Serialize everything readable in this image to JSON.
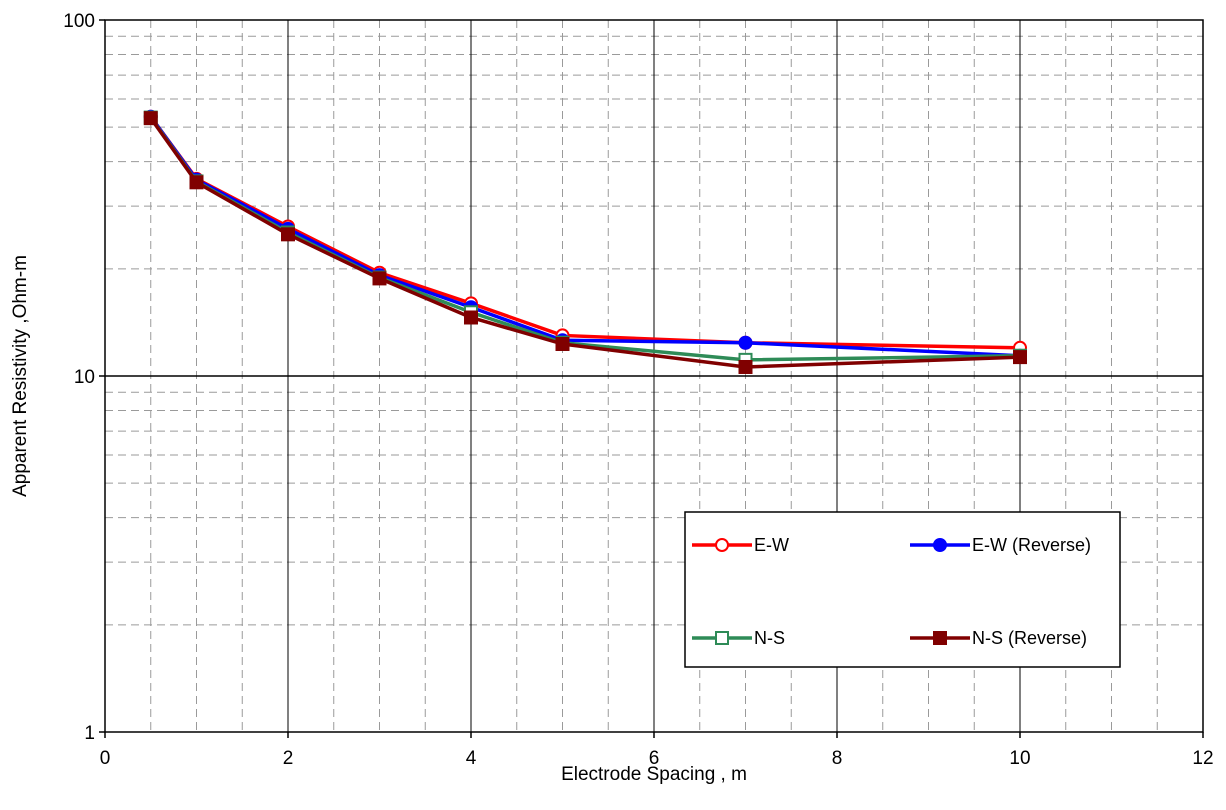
{
  "chart_data": {
    "type": "line",
    "title": "",
    "xlabel": "Electrode Spacing , m",
    "ylabel": "Apparent Resistivity ,Ohm-m",
    "xlim": [
      0,
      12
    ],
    "ylim": [
      1,
      100
    ],
    "yscale": "log",
    "grid": true,
    "x_ticks": [
      "0",
      "2",
      "4",
      "6",
      "8",
      "10",
      "12"
    ],
    "y_ticks": [
      "1",
      "10",
      "100"
    ],
    "legend_position": "bottom-right",
    "series": [
      {
        "name": "E-W",
        "color": "#ff0000",
        "marker": "circle-open",
        "x": [
          0.5,
          1,
          2,
          3,
          4,
          5,
          7,
          10
        ],
        "y": [
          53.5,
          35.8,
          26.3,
          19.5,
          16.0,
          13.0,
          12.4,
          12.0
        ]
      },
      {
        "name": "E-W (Reverse)",
        "color": "#0000ff",
        "marker": "circle-filled",
        "x": [
          0.5,
          1,
          2,
          3,
          4,
          5,
          7,
          10
        ],
        "y": [
          53.5,
          35.6,
          25.9,
          19.2,
          15.6,
          12.6,
          12.4,
          11.4
        ]
      },
      {
        "name": "N-S",
        "color": "#2e8b57",
        "marker": "square-open",
        "x": [
          0.5,
          1,
          2,
          3,
          4,
          5,
          7,
          10
        ],
        "y": [
          53.2,
          35.2,
          25.3,
          18.9,
          15.1,
          12.4,
          11.1,
          11.4
        ]
      },
      {
        "name": "N-S (Reverse)",
        "color": "#800000",
        "marker": "square-filled",
        "x": [
          0.5,
          1,
          2,
          3,
          4,
          5,
          7,
          10
        ],
        "y": [
          53.0,
          35.0,
          25.0,
          18.8,
          14.6,
          12.3,
          10.6,
          11.3
        ]
      }
    ]
  }
}
